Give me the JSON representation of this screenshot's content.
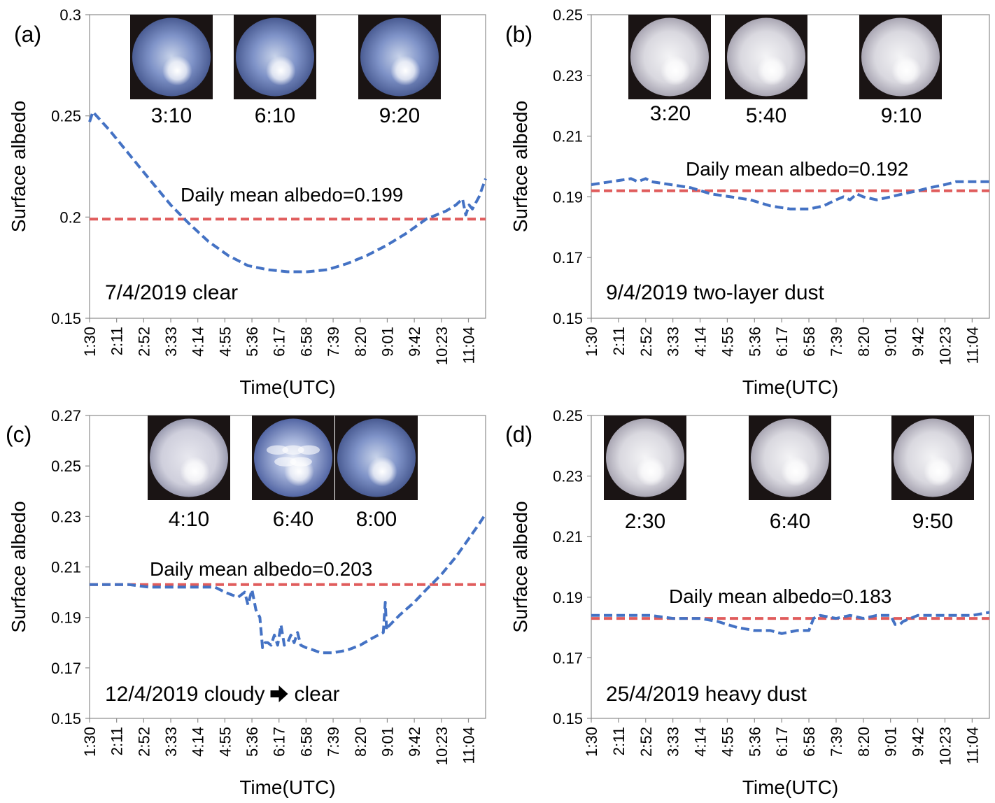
{
  "chart_data": [
    {
      "type": "line",
      "panel_label": "(a)",
      "ylabel": "Surface albedo",
      "xlabel": "Time(UTC)",
      "ylim": [
        0.15,
        0.3
      ],
      "yticks": [
        "0.15",
        "0.2",
        "0.25",
        "0.3"
      ],
      "x_ticks": [
        "1:30",
        "2:11",
        "2:52",
        "3:33",
        "4:14",
        "4:55",
        "5:36",
        "6:17",
        "6:58",
        "7:39",
        "8:20",
        "9:01",
        "9:42",
        "10:23",
        "11:04"
      ],
      "xlim": [
        "1:30",
        "11:30"
      ],
      "mean_label": "Daily mean albedo=0.199",
      "mean_value": 0.199,
      "caption": "7/4/2019 clear",
      "sky_images": [
        {
          "time": "3:10",
          "tone": "clear-blue"
        },
        {
          "time": "6:10",
          "tone": "clear-blue"
        },
        {
          "time": "9:20",
          "tone": "clear-blue"
        }
      ],
      "series": [
        {
          "x": [
            "1:30",
            "1:35",
            "2:00",
            "2:30",
            "3:00",
            "3:33",
            "4:00",
            "4:30",
            "5:00",
            "5:30",
            "6:00",
            "6:30",
            "6:45",
            "7:00",
            "7:30",
            "8:00",
            "8:30",
            "9:00",
            "9:30",
            "10:00",
            "10:30",
            "10:45",
            "10:55",
            "11:00",
            "11:05",
            "11:10",
            "11:20",
            "11:30"
          ],
          "y": [
            0.247,
            0.252,
            0.243,
            0.231,
            0.219,
            0.206,
            0.197,
            0.188,
            0.181,
            0.176,
            0.174,
            0.173,
            0.173,
            0.173,
            0.174,
            0.177,
            0.181,
            0.186,
            0.192,
            0.199,
            0.203,
            0.206,
            0.209,
            0.201,
            0.206,
            0.204,
            0.21,
            0.219
          ]
        }
      ]
    },
    {
      "type": "line",
      "panel_label": "(b)",
      "ylabel": "Surface albedo",
      "xlabel": "Time(UTC)",
      "ylim": [
        0.15,
        0.25
      ],
      "yticks": [
        "0.15",
        "0.17",
        "0.19",
        "0.21",
        "0.23",
        "0.25"
      ],
      "x_ticks": [
        "1:30",
        "2:11",
        "2:52",
        "3:33",
        "4:14",
        "4:55",
        "5:36",
        "6:17",
        "6:58",
        "7:39",
        "8:20",
        "9:01",
        "9:42",
        "10:23",
        "11:04"
      ],
      "xlim": [
        "1:30",
        "11:30"
      ],
      "mean_label": "Daily mean albedo=0.192",
      "mean_value": 0.192,
      "caption": "9/4/2019  two-layer dust",
      "sky_images": [
        {
          "time": "3:20",
          "tone": "dust-white"
        },
        {
          "time": "5:40",
          "tone": "dust-white"
        },
        {
          "time": "9:10",
          "tone": "dust-white"
        }
      ],
      "series": [
        {
          "x": [
            "1:30",
            "2:00",
            "2:30",
            "2:40",
            "2:52",
            "3:00",
            "3:30",
            "4:00",
            "4:30",
            "5:00",
            "5:30",
            "6:00",
            "6:30",
            "6:58",
            "7:20",
            "7:39",
            "7:50",
            "8:00",
            "8:10",
            "8:20",
            "8:40",
            "9:01",
            "9:20",
            "9:42",
            "10:00",
            "10:23",
            "10:40",
            "11:04",
            "11:30"
          ],
          "y": [
            0.194,
            0.195,
            0.196,
            0.195,
            0.196,
            0.195,
            0.194,
            0.193,
            0.191,
            0.19,
            0.189,
            0.187,
            0.186,
            0.186,
            0.187,
            0.189,
            0.19,
            0.189,
            0.191,
            0.19,
            0.189,
            0.19,
            0.191,
            0.192,
            0.193,
            0.194,
            0.195,
            0.195,
            0.195
          ]
        }
      ]
    },
    {
      "type": "line",
      "panel_label": "(c)",
      "ylabel": "Surface albedo",
      "xlabel": "Time(UTC)",
      "ylim": [
        0.15,
        0.27
      ],
      "yticks": [
        "0.15",
        "0.17",
        "0.19",
        "0.21",
        "0.23",
        "0.25",
        "0.27"
      ],
      "x_ticks": [
        "1:30",
        "2:11",
        "2:52",
        "3:33",
        "4:14",
        "4:55",
        "5:36",
        "6:17",
        "6:58",
        "7:39",
        "8:20",
        "9:01",
        "9:42",
        "10:23",
        "11:04"
      ],
      "xlim": [
        "1:30",
        "11:30"
      ],
      "mean_label": "Daily mean albedo=0.203",
      "mean_value": 0.203,
      "caption": "12/4/2019 cloudy",
      "caption_after": "clear",
      "sky_images": [
        {
          "time": "4:10",
          "tone": "cloud-white"
        },
        {
          "time": "6:40",
          "tone": "cloud-broken"
        },
        {
          "time": "8:00",
          "tone": "clear-blue"
        }
      ],
      "series": [
        {
          "x": [
            "1:30",
            "2:00",
            "2:30",
            "3:00",
            "3:33",
            "4:14",
            "4:40",
            "4:55",
            "5:05",
            "5:15",
            "5:25",
            "5:30",
            "5:36",
            "5:42",
            "5:48",
            "5:52",
            "5:56",
            "6:00",
            "6:05",
            "6:10",
            "6:15",
            "6:20",
            "6:25",
            "6:30",
            "6:35",
            "6:40",
            "6:45",
            "6:50",
            "6:58",
            "7:10",
            "7:20",
            "7:39",
            "8:00",
            "8:20",
            "8:40",
            "8:55",
            "8:58",
            "9:00",
            "9:01",
            "9:05",
            "9:20",
            "9:42",
            "10:00",
            "10:23",
            "10:45",
            "11:04",
            "11:20",
            "11:30"
          ],
          "y": [
            0.203,
            0.203,
            0.203,
            0.202,
            0.202,
            0.202,
            0.202,
            0.2,
            0.199,
            0.198,
            0.2,
            0.195,
            0.201,
            0.193,
            0.19,
            0.178,
            0.18,
            0.18,
            0.179,
            0.183,
            0.179,
            0.187,
            0.179,
            0.18,
            0.183,
            0.18,
            0.184,
            0.179,
            0.178,
            0.177,
            0.176,
            0.176,
            0.177,
            0.179,
            0.182,
            0.184,
            0.196,
            0.185,
            0.186,
            0.187,
            0.191,
            0.196,
            0.201,
            0.207,
            0.214,
            0.221,
            0.227,
            0.231
          ]
        }
      ]
    },
    {
      "type": "line",
      "panel_label": "(d)",
      "ylabel": "Surface albedo",
      "xlabel": "Time(UTC)",
      "ylim": [
        0.15,
        0.25
      ],
      "yticks": [
        "0.15",
        "0.17",
        "0.19",
        "0.21",
        "0.23",
        "0.25"
      ],
      "x_ticks": [
        "1:30",
        "2:11",
        "2:52",
        "3:33",
        "4:14",
        "4:55",
        "5:36",
        "6:17",
        "6:58",
        "7:39",
        "8:20",
        "9:01",
        "9:42",
        "10:23",
        "11:04"
      ],
      "xlim": [
        "1:30",
        "11:30"
      ],
      "mean_label": "Daily mean albedo=0.183",
      "mean_value": 0.183,
      "caption": "25/4/2019  heavy dust",
      "sky_images": [
        {
          "time": "2:30",
          "tone": "dust-white"
        },
        {
          "time": "6:40",
          "tone": "dust-white"
        },
        {
          "time": "9:50",
          "tone": "dust-white"
        }
      ],
      "series": [
        {
          "x": [
            "1:30",
            "2:00",
            "2:30",
            "3:00",
            "3:33",
            "4:14",
            "4:40",
            "4:55",
            "5:10",
            "5:36",
            "6:00",
            "6:17",
            "6:40",
            "6:58",
            "7:05",
            "7:15",
            "7:39",
            "8:00",
            "8:20",
            "8:40",
            "9:01",
            "9:08",
            "9:15",
            "9:20",
            "9:42",
            "10:00",
            "10:23",
            "11:04",
            "11:30"
          ],
          "y": [
            0.184,
            0.184,
            0.184,
            0.184,
            0.183,
            0.183,
            0.182,
            0.181,
            0.18,
            0.179,
            0.179,
            0.178,
            0.179,
            0.179,
            0.183,
            0.184,
            0.183,
            0.184,
            0.183,
            0.184,
            0.184,
            0.181,
            0.181,
            0.182,
            0.184,
            0.184,
            0.184,
            0.184,
            0.185
          ]
        }
      ]
    }
  ]
}
